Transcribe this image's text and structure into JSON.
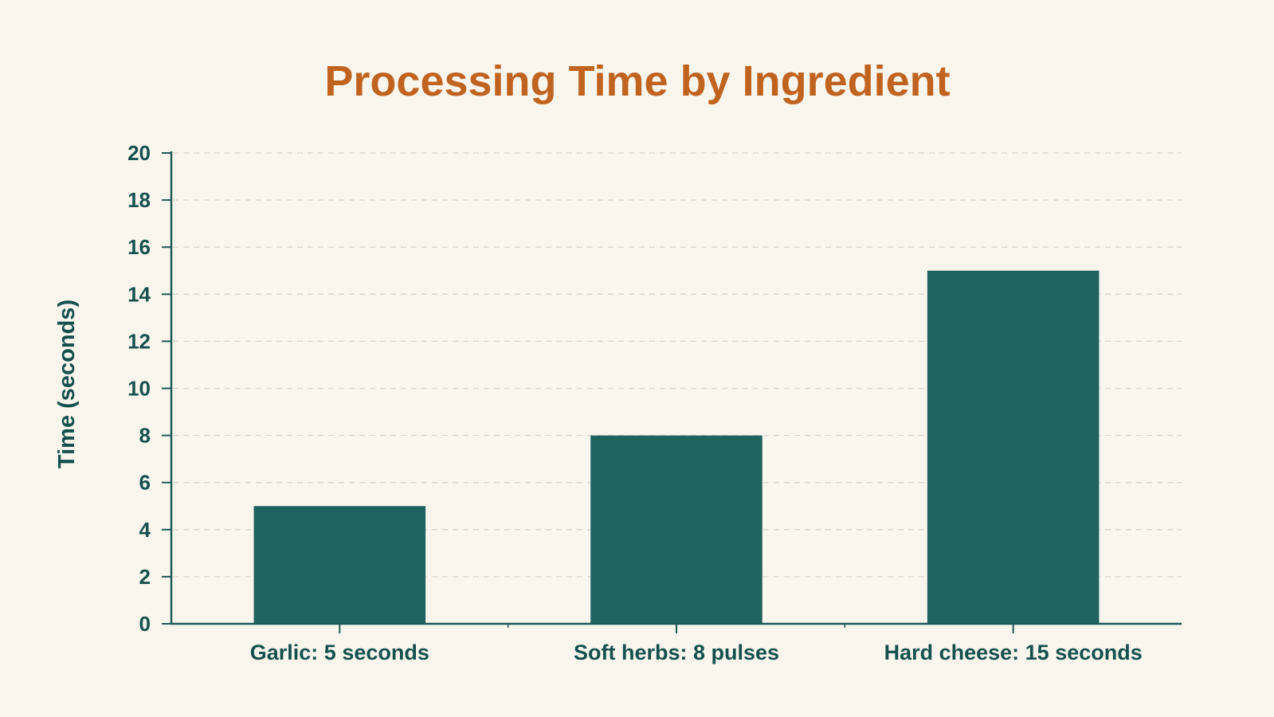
{
  "colors": {
    "background": "#faf6ee",
    "title": "#c0631f",
    "bar": "#1e6360",
    "axis": "#1a5a57",
    "text": "#14504d",
    "grid": "#d9d6cc"
  },
  "chart_data": {
    "type": "bar",
    "title": "Processing Time by Ingredient",
    "xlabel": "",
    "ylabel": "Time (seconds)",
    "categories": [
      "Garlic: 5 seconds",
      "Soft herbs: 8 pulses",
      "Hard cheese: 15 seconds"
    ],
    "values": [
      5,
      8,
      15
    ],
    "ylim": [
      0,
      20
    ],
    "yticks": [
      0,
      2,
      4,
      6,
      8,
      10,
      12,
      14,
      16,
      18,
      20
    ],
    "grid": true,
    "grid_style": "dashed",
    "legend": "none"
  }
}
